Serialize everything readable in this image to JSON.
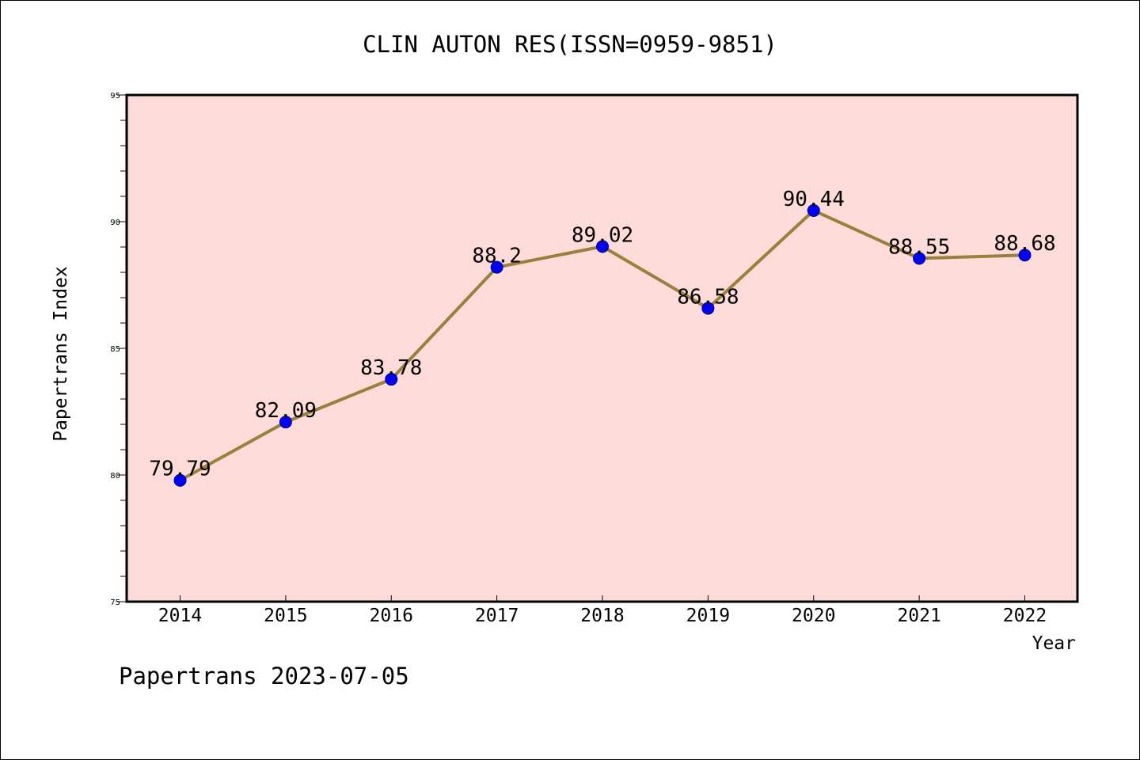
{
  "colors": {
    "plot_background": "#fddbd8",
    "line": "#9b7f3c",
    "marker": "#0000ff",
    "axis": "#000000"
  },
  "footer": "Papertrans 2023-07-05",
  "chart_data": {
    "type": "line",
    "title": "CLIN AUTON RES(ISSN=0959-9851)",
    "xlabel": "Year",
    "ylabel": "Papertrans Index",
    "categories": [
      "2014",
      "2015",
      "2016",
      "2017",
      "2018",
      "2019",
      "2020",
      "2021",
      "2022"
    ],
    "series": [
      {
        "values": [
          79.79,
          82.09,
          83.78,
          88.2,
          89.02,
          86.58,
          90.44,
          88.55,
          88.68
        ],
        "labels": [
          "79.79",
          "82.09",
          "83.78",
          "88.2",
          "89.02",
          "86.58",
          "90.44",
          "88.55",
          "88.68"
        ]
      }
    ],
    "ylim": [
      75,
      95
    ],
    "yticks": [
      "75",
      "80",
      "85",
      "90",
      "95"
    ],
    "grid": false,
    "legend": "none"
  }
}
